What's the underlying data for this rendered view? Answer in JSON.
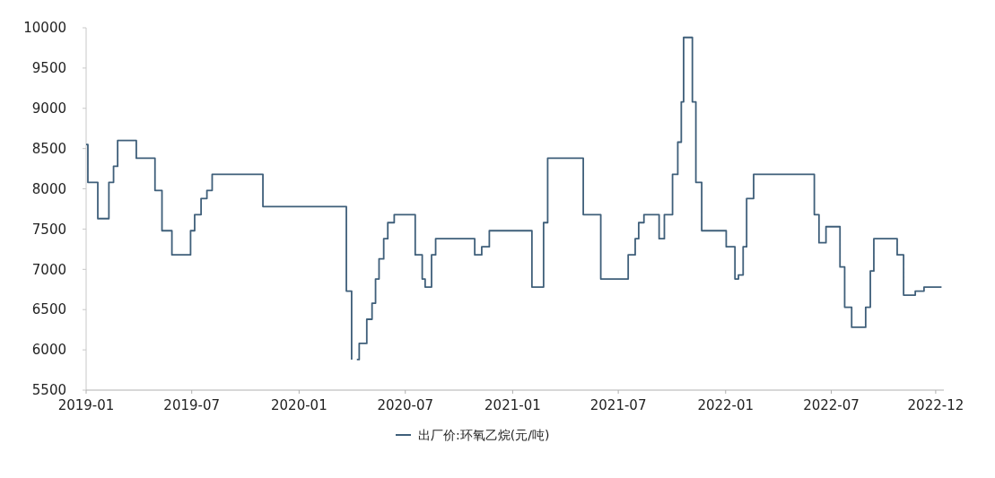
{
  "chart_data": {
    "type": "step",
    "legend": "bottom",
    "xlim": [
      "2019-01-01",
      "2023-01-10"
    ],
    "xticks": [
      {
        "value": "2019-01-01",
        "label": "2019-01"
      },
      {
        "value": "2019-07-01",
        "label": "2019-07"
      },
      {
        "value": "2020-01-01",
        "label": "2020-01"
      },
      {
        "value": "2020-07-01",
        "label": "2020-07"
      },
      {
        "value": "2021-01-01",
        "label": "2021-01"
      },
      {
        "value": "2021-07-01",
        "label": "2021-07"
      },
      {
        "value": "2022-01-01",
        "label": "2022-01"
      },
      {
        "value": "2022-07-01",
        "label": "2022-07"
      },
      {
        "value": "2022-12-27",
        "label": "2022-12"
      }
    ],
    "ylim": [
      5500,
      10000
    ],
    "yticks": [
      5500,
      6000,
      6500,
      7000,
      7500,
      8000,
      8500,
      9000,
      9500,
      10000
    ],
    "series": [
      {
        "name": "出厂价:环氧乙烷(元/吨)",
        "color": "#3f5f7a",
        "x": [
          "2019-01-01",
          "2019-01-04",
          "2019-01-21",
          "2019-02-09",
          "2019-02-17",
          "2019-02-24",
          "2019-03-28",
          "2019-04-29",
          "2019-05-11",
          "2019-05-28",
          "2019-06-29",
          "2019-07-06",
          "2019-07-17",
          "2019-07-27",
          "2019-08-05",
          "2019-10-31",
          "2020-03-22",
          "2020-03-31",
          "2020-04-05",
          "2020-04-09",
          "2020-04-13",
          "2020-04-26",
          "2020-05-05",
          "2020-05-11",
          "2020-05-17",
          "2020-05-25",
          "2020-06-01",
          "2020-06-12",
          "2020-07-18",
          "2020-07-30",
          "2020-08-04",
          "2020-08-15",
          "2020-08-22",
          "2020-10-28",
          "2020-11-09",
          "2020-11-22",
          "2021-02-03",
          "2021-02-23",
          "2021-03-02",
          "2021-05-02",
          "2021-06-01",
          "2021-07-18",
          "2021-07-30",
          "2021-08-05",
          "2021-08-14",
          "2021-09-09",
          "2021-09-18",
          "2021-10-02",
          "2021-10-11",
          "2021-10-17",
          "2021-10-21",
          "2021-11-05",
          "2021-11-11",
          "2021-11-21",
          "2022-01-02",
          "2022-01-17",
          "2022-01-23",
          "2022-01-31",
          "2022-02-06",
          "2022-02-18",
          "2022-06-02",
          "2022-06-10",
          "2022-06-22",
          "2022-07-16",
          "2022-07-24",
          "2022-08-05",
          "2022-08-29",
          "2022-09-06",
          "2022-09-12",
          "2022-10-22",
          "2022-11-02",
          "2022-11-22",
          "2022-12-07",
          "2023-01-06"
        ],
        "values": [
          8550,
          8080,
          7630,
          8080,
          8280,
          8600,
          8380,
          7980,
          7480,
          7180,
          7480,
          7680,
          7880,
          7980,
          8180,
          7780,
          6730,
          5880,
          null,
          5880,
          6080,
          6380,
          6580,
          6880,
          7130,
          7380,
          7580,
          7680,
          7180,
          6880,
          6780,
          7180,
          7380,
          7180,
          7280,
          7480,
          6780,
          7580,
          8380,
          7680,
          6880,
          7180,
          7380,
          7580,
          7680,
          7380,
          7680,
          8180,
          8580,
          9080,
          9880,
          9080,
          8080,
          7480,
          7280,
          6880,
          6930,
          7280,
          7880,
          8180,
          7680,
          7330,
          7530,
          7030,
          6530,
          6280,
          6530,
          6980,
          7380,
          7180,
          6680,
          6730,
          6780,
          6780
        ]
      }
    ]
  }
}
